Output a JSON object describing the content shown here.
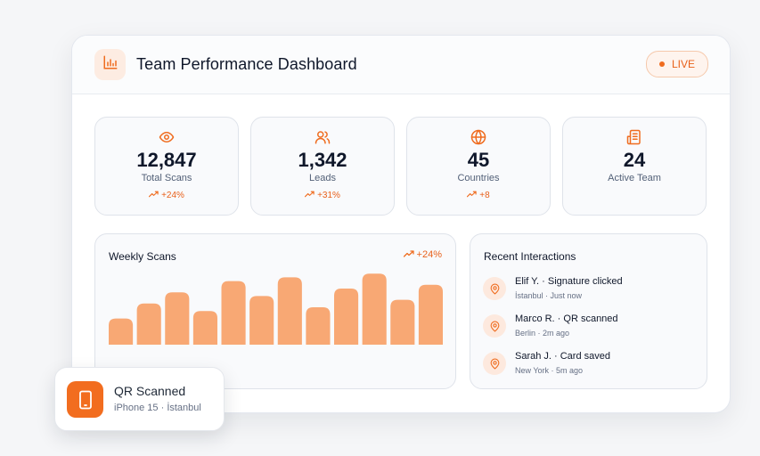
{
  "header": {
    "title": "Team Performance Dashboard",
    "logo_icon": "bar-chart-icon",
    "live_label": "LIVE"
  },
  "colors": {
    "accent": "#f26d1f",
    "bar": "#f8a874",
    "text": "#0f172a",
    "muted": "#526077"
  },
  "stats": [
    {
      "icon": "eye-icon",
      "value": "12,847",
      "label": "Total Scans",
      "delta": "+24%"
    },
    {
      "icon": "users-icon",
      "value": "1,342",
      "label": "Leads",
      "delta": "+31%"
    },
    {
      "icon": "globe-icon",
      "value": "45",
      "label": "Countries",
      "delta": "+8"
    },
    {
      "icon": "newspaper-icon",
      "value": "24",
      "label": "Active Team",
      "delta": null
    }
  ],
  "weekly": {
    "title": "Weekly Scans",
    "delta": "+24%"
  },
  "chart_data": {
    "type": "bar",
    "categories": [
      "",
      "",
      "",
      "",
      "",
      "",
      "",
      "",
      "",
      "",
      "",
      ""
    ],
    "values": [
      28,
      44,
      56,
      36,
      68,
      52,
      72,
      40,
      60,
      76,
      48,
      64
    ],
    "ylim": [
      0,
      80
    ],
    "title": "Weekly Scans",
    "xlabel": "",
    "ylabel": "",
    "grid": false
  },
  "recent": {
    "title": "Recent Interactions",
    "items": [
      {
        "title": "Elif Y. · Signature clicked",
        "sub": "İstanbul · Just now"
      },
      {
        "title": "Marco R. · QR scanned",
        "sub": "Berlin · 2m ago"
      },
      {
        "title": "Sarah J. · Card saved",
        "sub": "New York · 5m ago"
      }
    ]
  },
  "toast": {
    "icon": "phone-icon",
    "title": "QR Scanned",
    "sub": "iPhone 15 · İstanbul"
  }
}
